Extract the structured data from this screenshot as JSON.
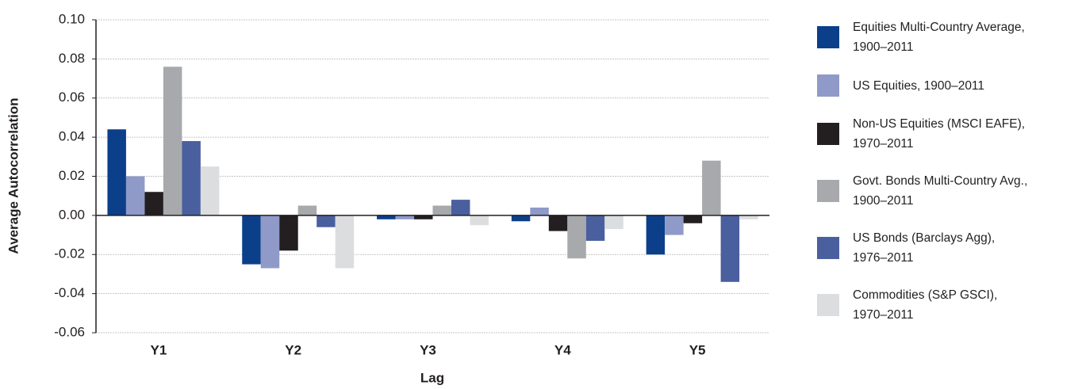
{
  "chart_data": {
    "type": "bar",
    "x_label": "Lag",
    "y_label": "Average Autocorrelation",
    "categories": [
      "Y1",
      "Y2",
      "Y3",
      "Y4",
      "Y5"
    ],
    "series": [
      {
        "name": "Equities Multi-Country Average,\n1900–2011",
        "color": "#0b3f8a",
        "values": [
          0.044,
          -0.025,
          -0.002,
          -0.003,
          -0.02
        ]
      },
      {
        "name": "US Equities, 1900–2011",
        "color": "#8f9ac8",
        "values": [
          0.02,
          -0.027,
          -0.002,
          0.004,
          -0.01
        ]
      },
      {
        "name": "Non-US Equities (MSCI EAFE),\n1970–2011",
        "color": "#231f20",
        "values": [
          0.012,
          -0.018,
          -0.002,
          -0.008,
          -0.004
        ]
      },
      {
        "name": "Govt. Bonds Multi-Country Avg.,\n1900–2011",
        "color": "#a7a9ac",
        "values": [
          0.076,
          0.005,
          0.005,
          -0.022,
          0.028
        ]
      },
      {
        "name": "US Bonds (Barclays Agg),\n1976–2011",
        "color": "#4a5f9e",
        "values": [
          0.038,
          -0.006,
          0.008,
          -0.013,
          -0.034
        ]
      },
      {
        "name": "Commodities (S&P GSCI),\n1970–2011",
        "color": "#dcdddf",
        "values": [
          0.025,
          -0.027,
          -0.005,
          -0.007,
          -0.002
        ]
      }
    ],
    "ylim": [
      -0.06,
      0.1
    ],
    "yticks": [
      -0.06,
      -0.04,
      -0.02,
      {
        "value": 0,
        "label": "0.00"
      },
      0.02,
      0.04,
      0.06,
      0.08,
      {
        "value": 0.1,
        "label": "0.10"
      }
    ],
    "grid": true,
    "legend": "right"
  }
}
